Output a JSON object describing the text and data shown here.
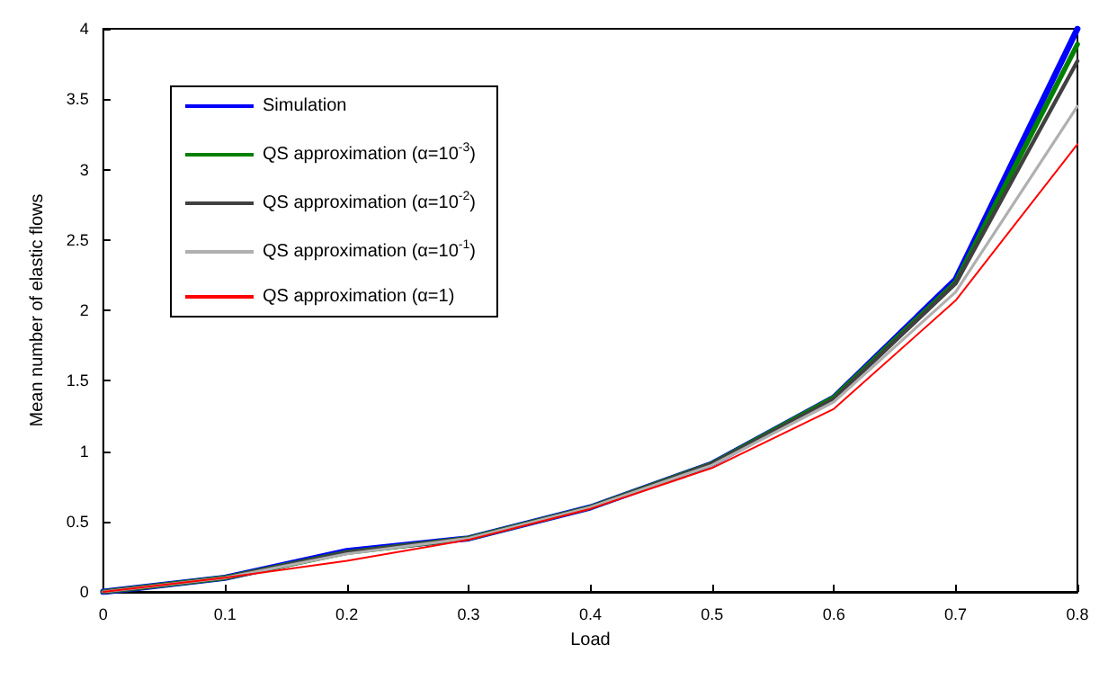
{
  "chart_data": {
    "type": "line",
    "xlabel": "Load",
    "ylabel": "Mean number of elastic flows",
    "x": [
      0,
      0.1,
      0.2,
      0.3,
      0.4,
      0.5,
      0.6,
      0.7,
      0.8
    ],
    "series": [
      {
        "name": "Simulation",
        "color": "#0000ff",
        "values": [
          0,
          0.1,
          0.29,
          0.38,
          0.6,
          0.91,
          1.38,
          2.22,
          4.0
        ]
      },
      {
        "name": "QS approximation (α=10$^{-3}$)",
        "color": "#008000",
        "values": [
          0,
          0.1,
          0.28,
          0.38,
          0.6,
          0.91,
          1.38,
          2.2,
          3.89
        ]
      },
      {
        "name": "QS approximation (α=10$^{-2}$)",
        "color": "#404040",
        "values": [
          0,
          0.1,
          0.28,
          0.38,
          0.6,
          0.91,
          1.37,
          2.19,
          3.77
        ]
      },
      {
        "name": "QS approximation (α=10$^{-1}$)",
        "color": "#b0b0b0",
        "values": [
          0,
          0.1,
          0.27,
          0.38,
          0.6,
          0.9,
          1.35,
          2.13,
          3.45
        ]
      },
      {
        "name": "QS approximation (α=1)",
        "color": "#ff0000",
        "values": [
          0,
          0.1,
          0.22,
          0.37,
          0.59,
          0.88,
          1.3,
          2.07,
          3.18
        ]
      }
    ],
    "xlim": [
      0,
      0.8
    ],
    "xticks": [
      0,
      0.1,
      0.2,
      0.3,
      0.4,
      0.5,
      0.6,
      0.7,
      0.8
    ],
    "ylim": [
      0,
      4
    ],
    "yticks": [
      0,
      0.5,
      1,
      1.5,
      2,
      2.5,
      3,
      3.5,
      4
    ],
    "grid": false,
    "legend": "top left",
    "marker": "none",
    "line_style": "solid"
  }
}
